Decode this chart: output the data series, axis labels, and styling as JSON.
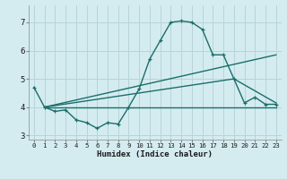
{
  "xlabel": "Humidex (Indice chaleur)",
  "xlim": [
    -0.5,
    23.5
  ],
  "ylim": [
    2.85,
    7.6
  ],
  "yticks": [
    3,
    4,
    5,
    6,
    7
  ],
  "xticks": [
    0,
    1,
    2,
    3,
    4,
    5,
    6,
    7,
    8,
    9,
    10,
    11,
    12,
    13,
    14,
    15,
    16,
    17,
    18,
    19,
    20,
    21,
    22,
    23
  ],
  "bg_color": "#d4ecf0",
  "grid_color": "#b8d4d8",
  "line_color": "#1a6e6a",
  "marker": "+",
  "line1_x": [
    0,
    1,
    2,
    3,
    4,
    5,
    6,
    7,
    8,
    9,
    10,
    11,
    12,
    13,
    14,
    15,
    16,
    17,
    18,
    19,
    20,
    21,
    22,
    23
  ],
  "line1_y": [
    4.7,
    4.0,
    3.85,
    3.9,
    3.55,
    3.45,
    3.25,
    3.45,
    3.4,
    4.0,
    4.65,
    5.7,
    6.35,
    7.0,
    7.05,
    7.0,
    6.75,
    5.85,
    5.85,
    5.0,
    4.15,
    4.35,
    4.1,
    4.1
  ],
  "line2_x": [
    1,
    23
  ],
  "line2_y": [
    4.0,
    4.0
  ],
  "line3_x": [
    1,
    23
  ],
  "line3_y": [
    4.0,
    5.85
  ],
  "line4_x": [
    1,
    19,
    23
  ],
  "line4_y": [
    4.0,
    5.0,
    4.15
  ]
}
